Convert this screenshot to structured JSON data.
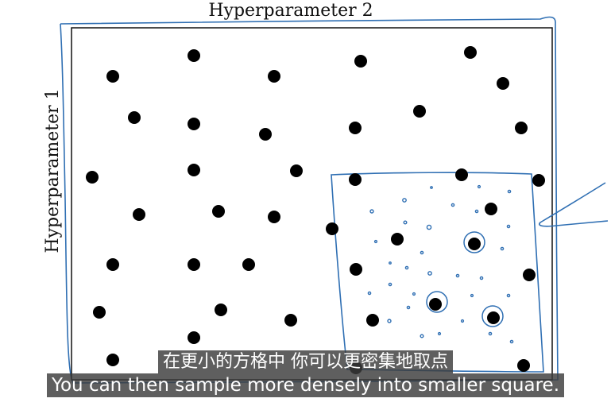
{
  "axes": {
    "x_label": "Hyperparameter 2",
    "y_label": "Hyperparameter 1"
  },
  "subtitles": {
    "chinese": "在更小的方格中 你可以更密集地取点",
    "english": "You can then sample more densely into smaller square."
  },
  "colors": {
    "sketch_blue": "#2f6fb3",
    "dot": "#000000",
    "frame": "#000000"
  }
}
